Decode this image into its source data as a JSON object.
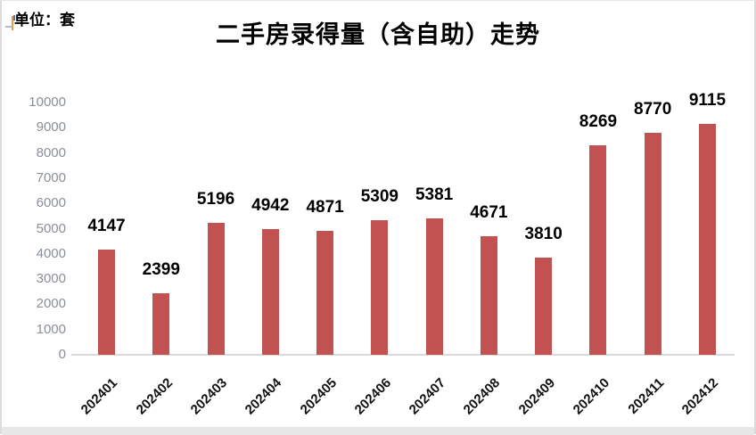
{
  "unit_label": "单位：套",
  "colors": {
    "bar": "#c25151",
    "axis_line": "#d9d9d9",
    "y_tick_label": "#8a8f96",
    "data_label": "#000000",
    "title": "#000000"
  },
  "chart_data": {
    "type": "bar",
    "title": "二手房录得量（含自助）走势",
    "unit": "套",
    "categories": [
      "202401",
      "202402",
      "202403",
      "202404",
      "202405",
      "202406",
      "202407",
      "202408",
      "202409",
      "202410",
      "202411",
      "202412"
    ],
    "values": [
      4147,
      2399,
      5196,
      4942,
      4871,
      5309,
      5381,
      4671,
      3810,
      8269,
      8770,
      9115
    ],
    "ylim": [
      0,
      10000
    ],
    "yticks": [
      0,
      1000,
      2000,
      3000,
      4000,
      5000,
      6000,
      7000,
      8000,
      9000,
      10000
    ],
    "grid": false,
    "legend": "none",
    "data_labels": "outside-end",
    "x_label_rotation": -45
  }
}
